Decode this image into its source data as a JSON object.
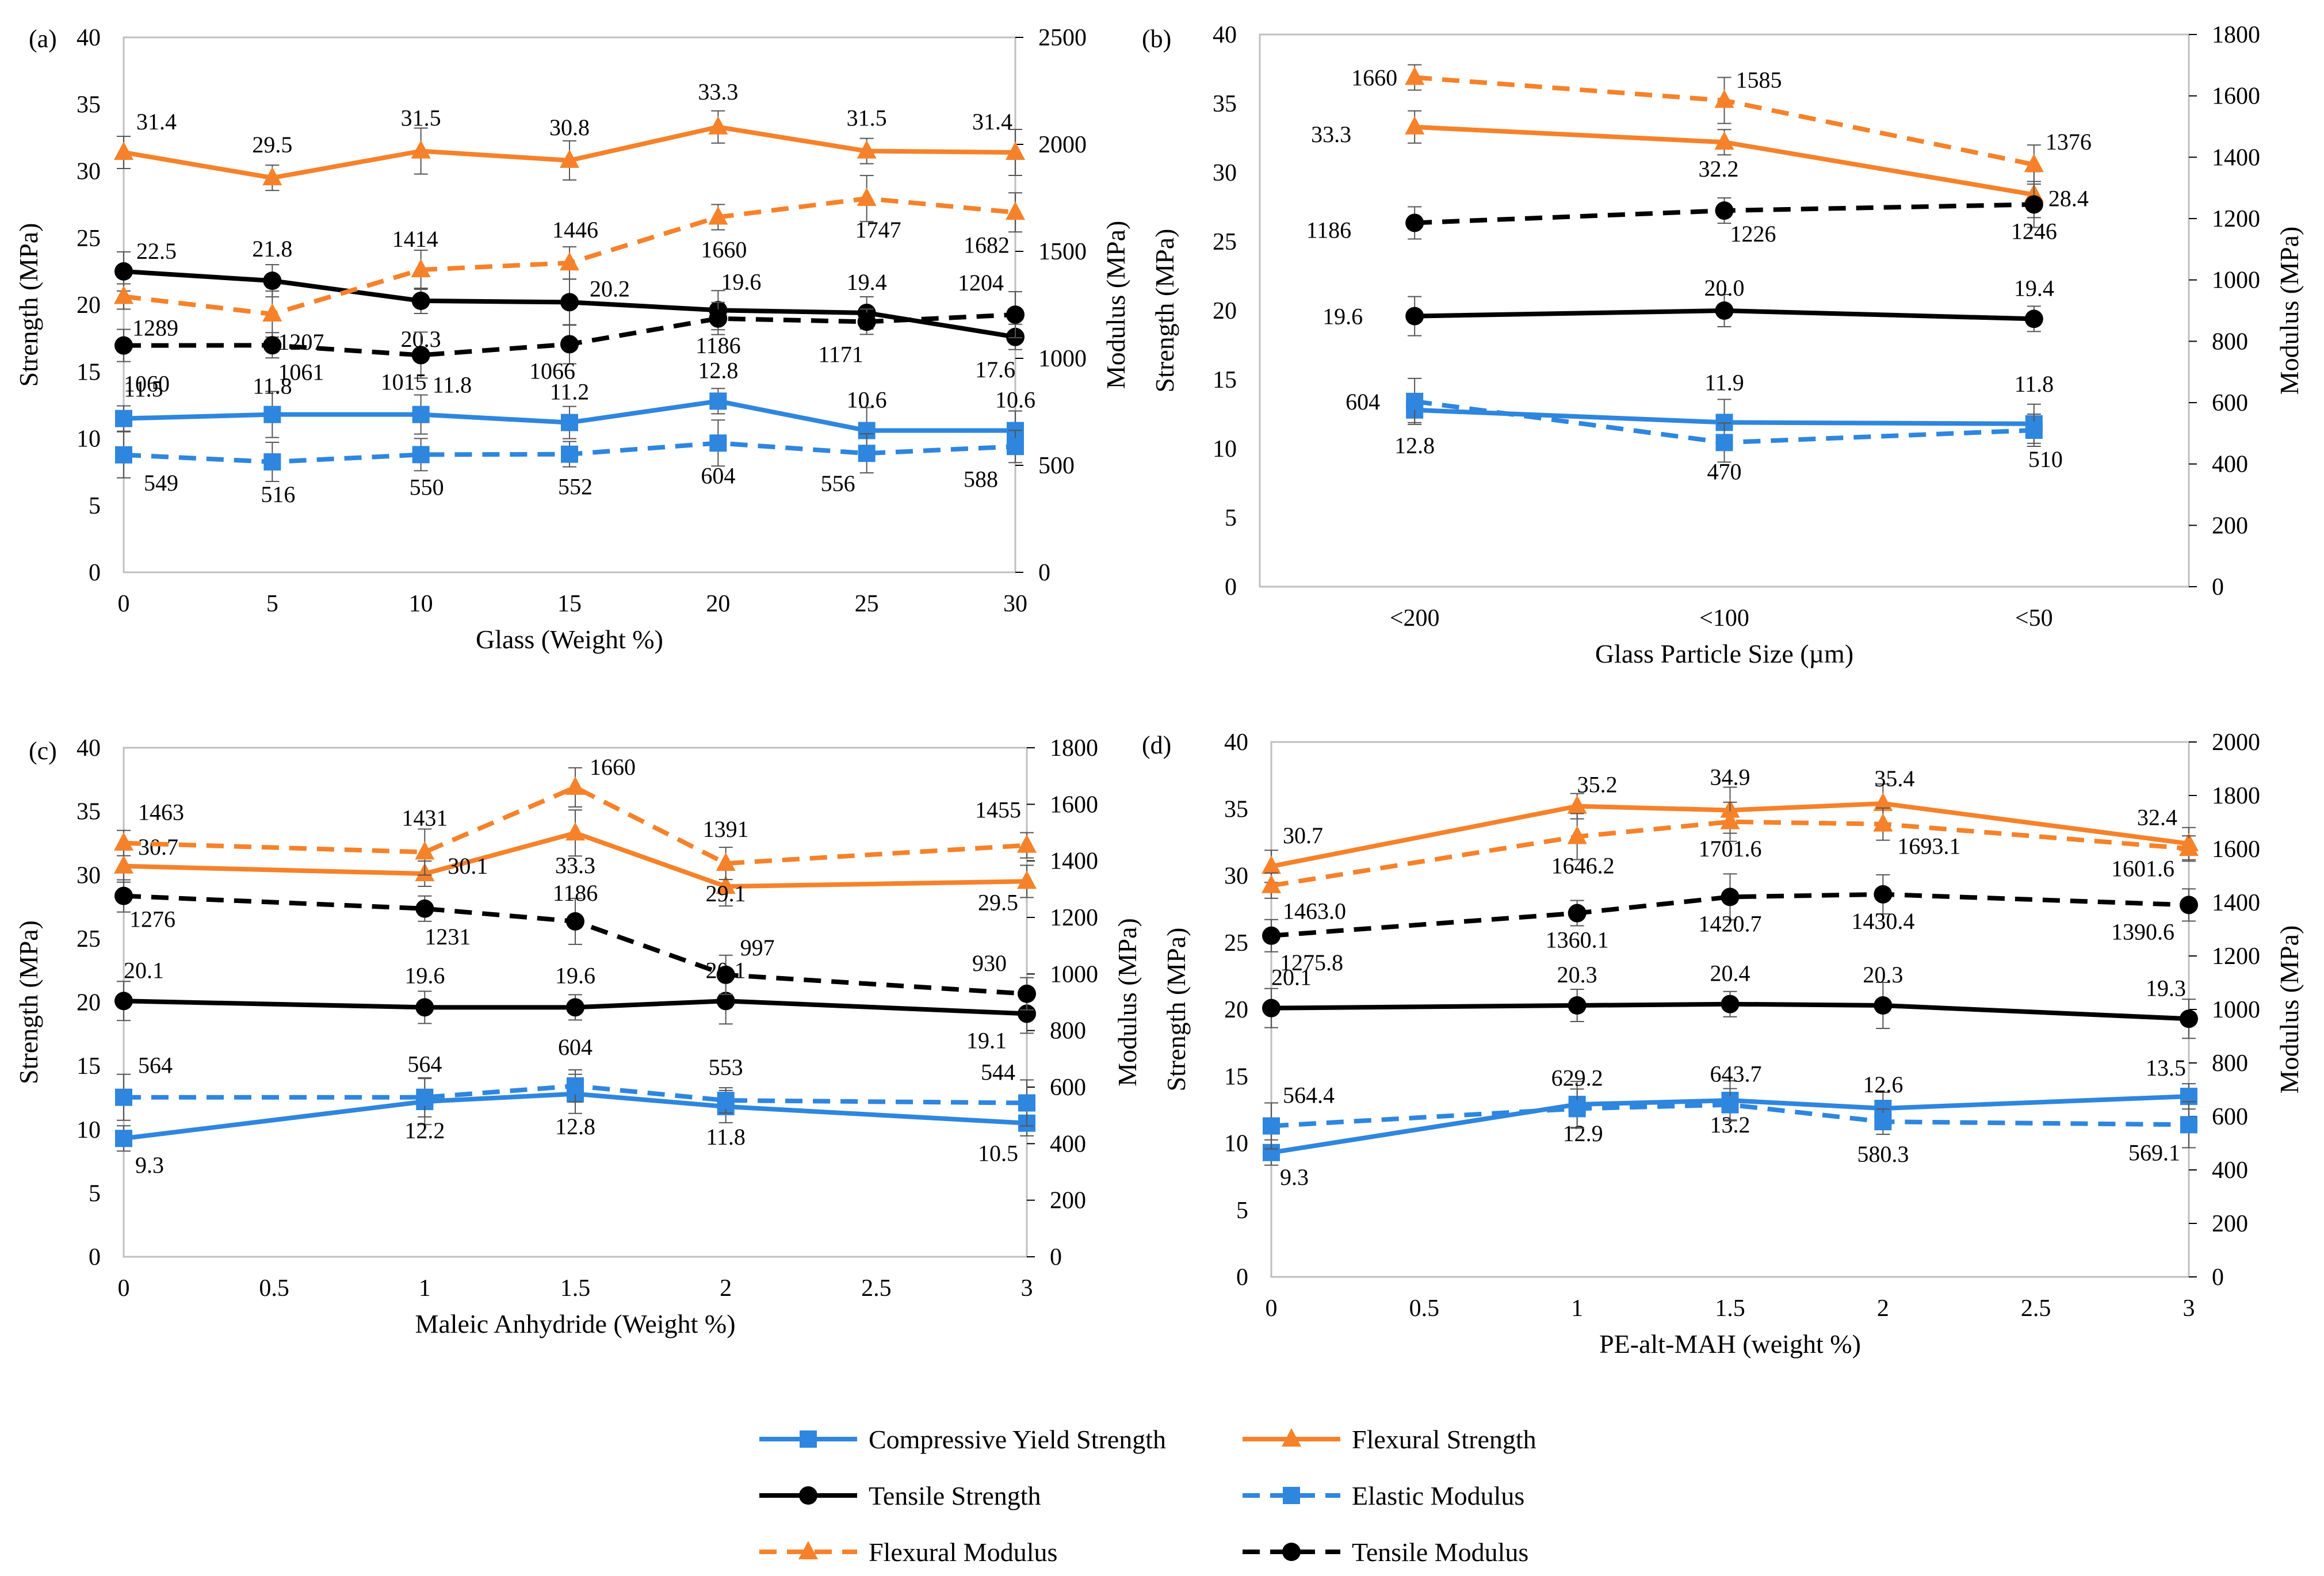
{
  "series_styles": [
    {
      "key": "comp_yield",
      "name": "Compressive Yield Strength",
      "color": "#2E86DE",
      "marker": "square",
      "dashed": false,
      "axis": "left"
    },
    {
      "key": "flex_strength",
      "name": "Flexural Strength",
      "color": "#F5822A",
      "marker": "triangle",
      "dashed": false,
      "axis": "left"
    },
    {
      "key": "tensile_strength",
      "name": "Tensile Strength",
      "color": "#000000",
      "marker": "circle",
      "dashed": false,
      "axis": "left"
    },
    {
      "key": "elastic_modulus",
      "name": "Elastic Modulus",
      "color": "#2E86DE",
      "marker": "square",
      "dashed": true,
      "axis": "right"
    },
    {
      "key": "flex_modulus",
      "name": "Flexural Modulus",
      "color": "#F5822A",
      "marker": "triangle",
      "dashed": true,
      "axis": "right"
    },
    {
      "key": "tensile_modulus",
      "name": "Tensile Modulus",
      "color": "#000000",
      "marker": "circle",
      "dashed": true,
      "axis": "right"
    }
  ],
  "chart_data": [
    {
      "panel": "(a)",
      "type": "line",
      "xlabel": "Glass (Weight %)",
      "ylabel": "Strength (MPa)",
      "y2label": "Modulus (MPa)",
      "x_scale": "linear",
      "x": [
        0,
        5,
        10,
        15,
        20,
        25,
        30
      ],
      "xlim": [
        0,
        30
      ],
      "xticks": [
        0,
        5,
        10,
        15,
        20,
        25,
        30
      ],
      "xtick_labels": [
        "0",
        "5",
        "10",
        "15",
        "20",
        "25",
        "30"
      ],
      "ylim": [
        0,
        40
      ],
      "yticks": [
        0,
        5,
        10,
        15,
        20,
        25,
        30,
        35,
        40
      ],
      "ytick_labels": [
        "0",
        "5",
        "10",
        "15",
        "20",
        "25",
        "30",
        "35",
        "40"
      ],
      "y2lim": [
        0,
        2500
      ],
      "y2ticks": [
        0,
        500,
        1000,
        1500,
        2000,
        2500
      ],
      "y2tick_labels": [
        "0",
        "500",
        "1000",
        "1500",
        "2000",
        "2500"
      ],
      "series": [
        {
          "key": "comp_yield",
          "values": [
            11.5,
            11.8,
            11.8,
            11.2,
            12.8,
            10.6,
            10.6
          ],
          "labels": [
            "11.5",
            "11.8",
            "11.8",
            "11.2",
            "12.8",
            "10.6",
            "10.6"
          ]
        },
        {
          "key": "flex_strength",
          "values": [
            31.4,
            29.5,
            31.5,
            30.8,
            33.3,
            31.5,
            31.4
          ],
          "labels": [
            "31.4",
            "29.5",
            "31.5",
            "30.8",
            "33.3",
            "31.5",
            "31.4"
          ]
        },
        {
          "key": "tensile_strength",
          "values": [
            22.5,
            21.8,
            20.3,
            20.2,
            19.6,
            19.4,
            17.6
          ],
          "labels": [
            "22.5",
            "21.8",
            "20.3",
            "20.2",
            "19.6",
            "19.4",
            "17.6"
          ]
        },
        {
          "key": "elastic_modulus",
          "values": [
            549,
            516,
            550,
            552,
            604,
            556,
            588
          ],
          "labels": [
            "549",
            "516",
            "550",
            "552",
            "604",
            "556",
            "588"
          ]
        },
        {
          "key": "flex_modulus",
          "values": [
            1289,
            1207,
            1414,
            1446,
            1660,
            1747,
            1682
          ],
          "labels": [
            "1289",
            "1207",
            "1414",
            "1446",
            "1660",
            "1747",
            "1682"
          ]
        },
        {
          "key": "tensile_modulus",
          "values": [
            1060,
            1061,
            1015,
            1066,
            1186,
            1171,
            1204
          ],
          "labels": [
            "1060",
            "1061",
            "1015",
            "1066",
            "1186",
            "1171",
            "1204"
          ]
        }
      ]
    },
    {
      "panel": "(b)",
      "type": "line",
      "xlabel": "Glass Particle Size (µm)",
      "ylabel": "Strength (MPa)",
      "y2label": "Modulus (MPa)",
      "x_scale": "category",
      "x": [
        "<200",
        "<100",
        "<50"
      ],
      "xtick_labels": [
        "<200",
        "<100",
        "<50"
      ],
      "ylim": [
        0,
        40
      ],
      "yticks": [
        0,
        5,
        10,
        15,
        20,
        25,
        30,
        35,
        40
      ],
      "ytick_labels": [
        "0",
        "5",
        "10",
        "15",
        "20",
        "25",
        "30",
        "35",
        "40"
      ],
      "y2lim": [
        0,
        1800
      ],
      "y2ticks": [
        0,
        200,
        400,
        600,
        800,
        1000,
        1200,
        1400,
        1600,
        1800
      ],
      "y2tick_labels": [
        "0",
        "200",
        "400",
        "600",
        "800",
        "1000",
        "1200",
        "1400",
        "1600",
        "1800"
      ],
      "series": [
        {
          "key": "comp_yield",
          "values": [
            12.8,
            11.9,
            11.8
          ],
          "labels": [
            "12.8",
            "11.9",
            "11.8"
          ]
        },
        {
          "key": "flex_strength",
          "values": [
            33.3,
            32.2,
            28.4
          ],
          "labels": [
            "33.3",
            "32.2",
            "28.4"
          ]
        },
        {
          "key": "tensile_strength",
          "values": [
            19.6,
            20.0,
            19.4
          ],
          "labels": [
            "19.6",
            "20.0",
            "19.4"
          ]
        },
        {
          "key": "elastic_modulus",
          "values": [
            604,
            470,
            510
          ],
          "labels": [
            "604",
            "470",
            "510"
          ]
        },
        {
          "key": "flex_modulus",
          "values": [
            1660,
            1585,
            1376
          ],
          "labels": [
            "1660",
            "1585",
            "1376"
          ]
        },
        {
          "key": "tensile_modulus",
          "values": [
            1186,
            1226,
            1246
          ],
          "labels": [
            "1186",
            "1226",
            "1246"
          ]
        }
      ]
    },
    {
      "panel": "(c)",
      "type": "line",
      "xlabel": "Maleic Anhydride (Weight %)",
      "ylabel": "Strength (MPa)",
      "y2label": "Modulus (MPa)",
      "x_scale": "linear",
      "x": [
        0,
        1,
        1.5,
        2,
        3
      ],
      "xlim": [
        0,
        3
      ],
      "xticks": [
        0,
        0.5,
        1,
        1.5,
        2,
        2.5,
        3
      ],
      "xtick_labels": [
        "0",
        "0.5",
        "1",
        "1.5",
        "2",
        "2.5",
        "3"
      ],
      "ylim": [
        0,
        40
      ],
      "yticks": [
        0,
        5,
        10,
        15,
        20,
        25,
        30,
        35,
        40
      ],
      "ytick_labels": [
        "0",
        "5",
        "10",
        "15",
        "20",
        "25",
        "30",
        "35",
        "40"
      ],
      "y2lim": [
        0,
        1800
      ],
      "y2ticks": [
        0,
        200,
        400,
        600,
        800,
        1000,
        1200,
        1400,
        1600,
        1800
      ],
      "y2tick_labels": [
        "0",
        "200",
        "400",
        "600",
        "800",
        "1000",
        "1200",
        "1400",
        "1600",
        "1800"
      ],
      "series": [
        {
          "key": "comp_yield",
          "values": [
            9.3,
            12.2,
            12.8,
            11.8,
            10.5
          ],
          "labels": [
            "9.3",
            "12.2",
            "12.8",
            "11.8",
            "10.5"
          ]
        },
        {
          "key": "flex_strength",
          "values": [
            30.7,
            30.1,
            33.3,
            29.1,
            29.5
          ],
          "labels": [
            "30.7",
            "30.1",
            "33.3",
            "29.1",
            "29.5"
          ]
        },
        {
          "key": "tensile_strength",
          "values": [
            20.1,
            19.6,
            19.6,
            20.1,
            19.1
          ],
          "labels": [
            "20.1",
            "19.6",
            "19.6",
            "20.1",
            "19.1"
          ]
        },
        {
          "key": "elastic_modulus",
          "values": [
            564,
            564,
            604,
            553,
            544
          ],
          "labels": [
            "564",
            "564",
            "604",
            "553",
            "544"
          ]
        },
        {
          "key": "flex_modulus",
          "values": [
            1463,
            1431,
            1660,
            1391,
            1455
          ],
          "labels": [
            "1463",
            "1431",
            "1660",
            "1391",
            "1455"
          ]
        },
        {
          "key": "tensile_modulus",
          "values": [
            1276,
            1231,
            1186,
            997,
            930
          ],
          "labels": [
            "1276",
            "1231",
            "1186",
            "997",
            "930"
          ]
        }
      ]
    },
    {
      "panel": "(d)",
      "type": "line",
      "xlabel": "PE-alt-MAH (weight %)",
      "ylabel": "Strength (MPa)",
      "y2label": "Modulus (MPa)",
      "x_scale": "linear",
      "x": [
        0,
        1,
        1.5,
        2,
        3
      ],
      "xlim": [
        0,
        3
      ],
      "xticks": [
        0,
        0.5,
        1,
        1.5,
        2,
        2.5,
        3
      ],
      "xtick_labels": [
        "0",
        "0.5",
        "1",
        "1.5",
        "2",
        "2.5",
        "3"
      ],
      "ylim": [
        0,
        40
      ],
      "yticks": [
        0,
        5,
        10,
        15,
        20,
        25,
        30,
        35,
        40
      ],
      "ytick_labels": [
        "0",
        "5",
        "10",
        "15",
        "20",
        "25",
        "30",
        "35",
        "40"
      ],
      "y2lim": [
        0,
        2000
      ],
      "y2ticks": [
        0,
        200,
        400,
        600,
        800,
        1000,
        1200,
        1400,
        1600,
        1800,
        2000
      ],
      "y2tick_labels": [
        "0",
        "200",
        "400",
        "600",
        "800",
        "1000",
        "1200",
        "1400",
        "1600",
        "1800",
        "2000"
      ],
      "series": [
        {
          "key": "comp_yield",
          "values": [
            9.3,
            12.9,
            13.2,
            12.6,
            13.5
          ],
          "labels": [
            "9.3",
            "12.9",
            "13.2",
            "12.6",
            "13.5"
          ]
        },
        {
          "key": "flex_strength",
          "values": [
            30.7,
            35.2,
            34.9,
            35.4,
            32.4
          ],
          "labels": [
            "30.7",
            "35.2",
            "34.9",
            "35.4",
            "32.4"
          ]
        },
        {
          "key": "tensile_strength",
          "values": [
            20.1,
            20.3,
            20.4,
            20.3,
            19.3
          ],
          "labels": [
            "20.1",
            "20.3",
            "20.4",
            "20.3",
            "19.3"
          ]
        },
        {
          "key": "elastic_modulus",
          "values": [
            564.4,
            629.2,
            643.7,
            580.3,
            569.1
          ],
          "labels": [
            "564.4",
            "629.2",
            "643.7",
            "580.3",
            "569.1"
          ]
        },
        {
          "key": "flex_modulus",
          "values": [
            1463.0,
            1646.2,
            1701.6,
            1693.1,
            1601.6
          ],
          "labels": [
            "1463.0",
            "1646.2",
            "1701.6",
            "1693.1",
            "1601.6"
          ]
        },
        {
          "key": "tensile_modulus",
          "values": [
            1275.8,
            1360.1,
            1420.7,
            1430.4,
            1390.6
          ],
          "labels": [
            "1275.8",
            "1360.1",
            "1420.7",
            "1430.4",
            "1390.6"
          ]
        }
      ]
    }
  ]
}
